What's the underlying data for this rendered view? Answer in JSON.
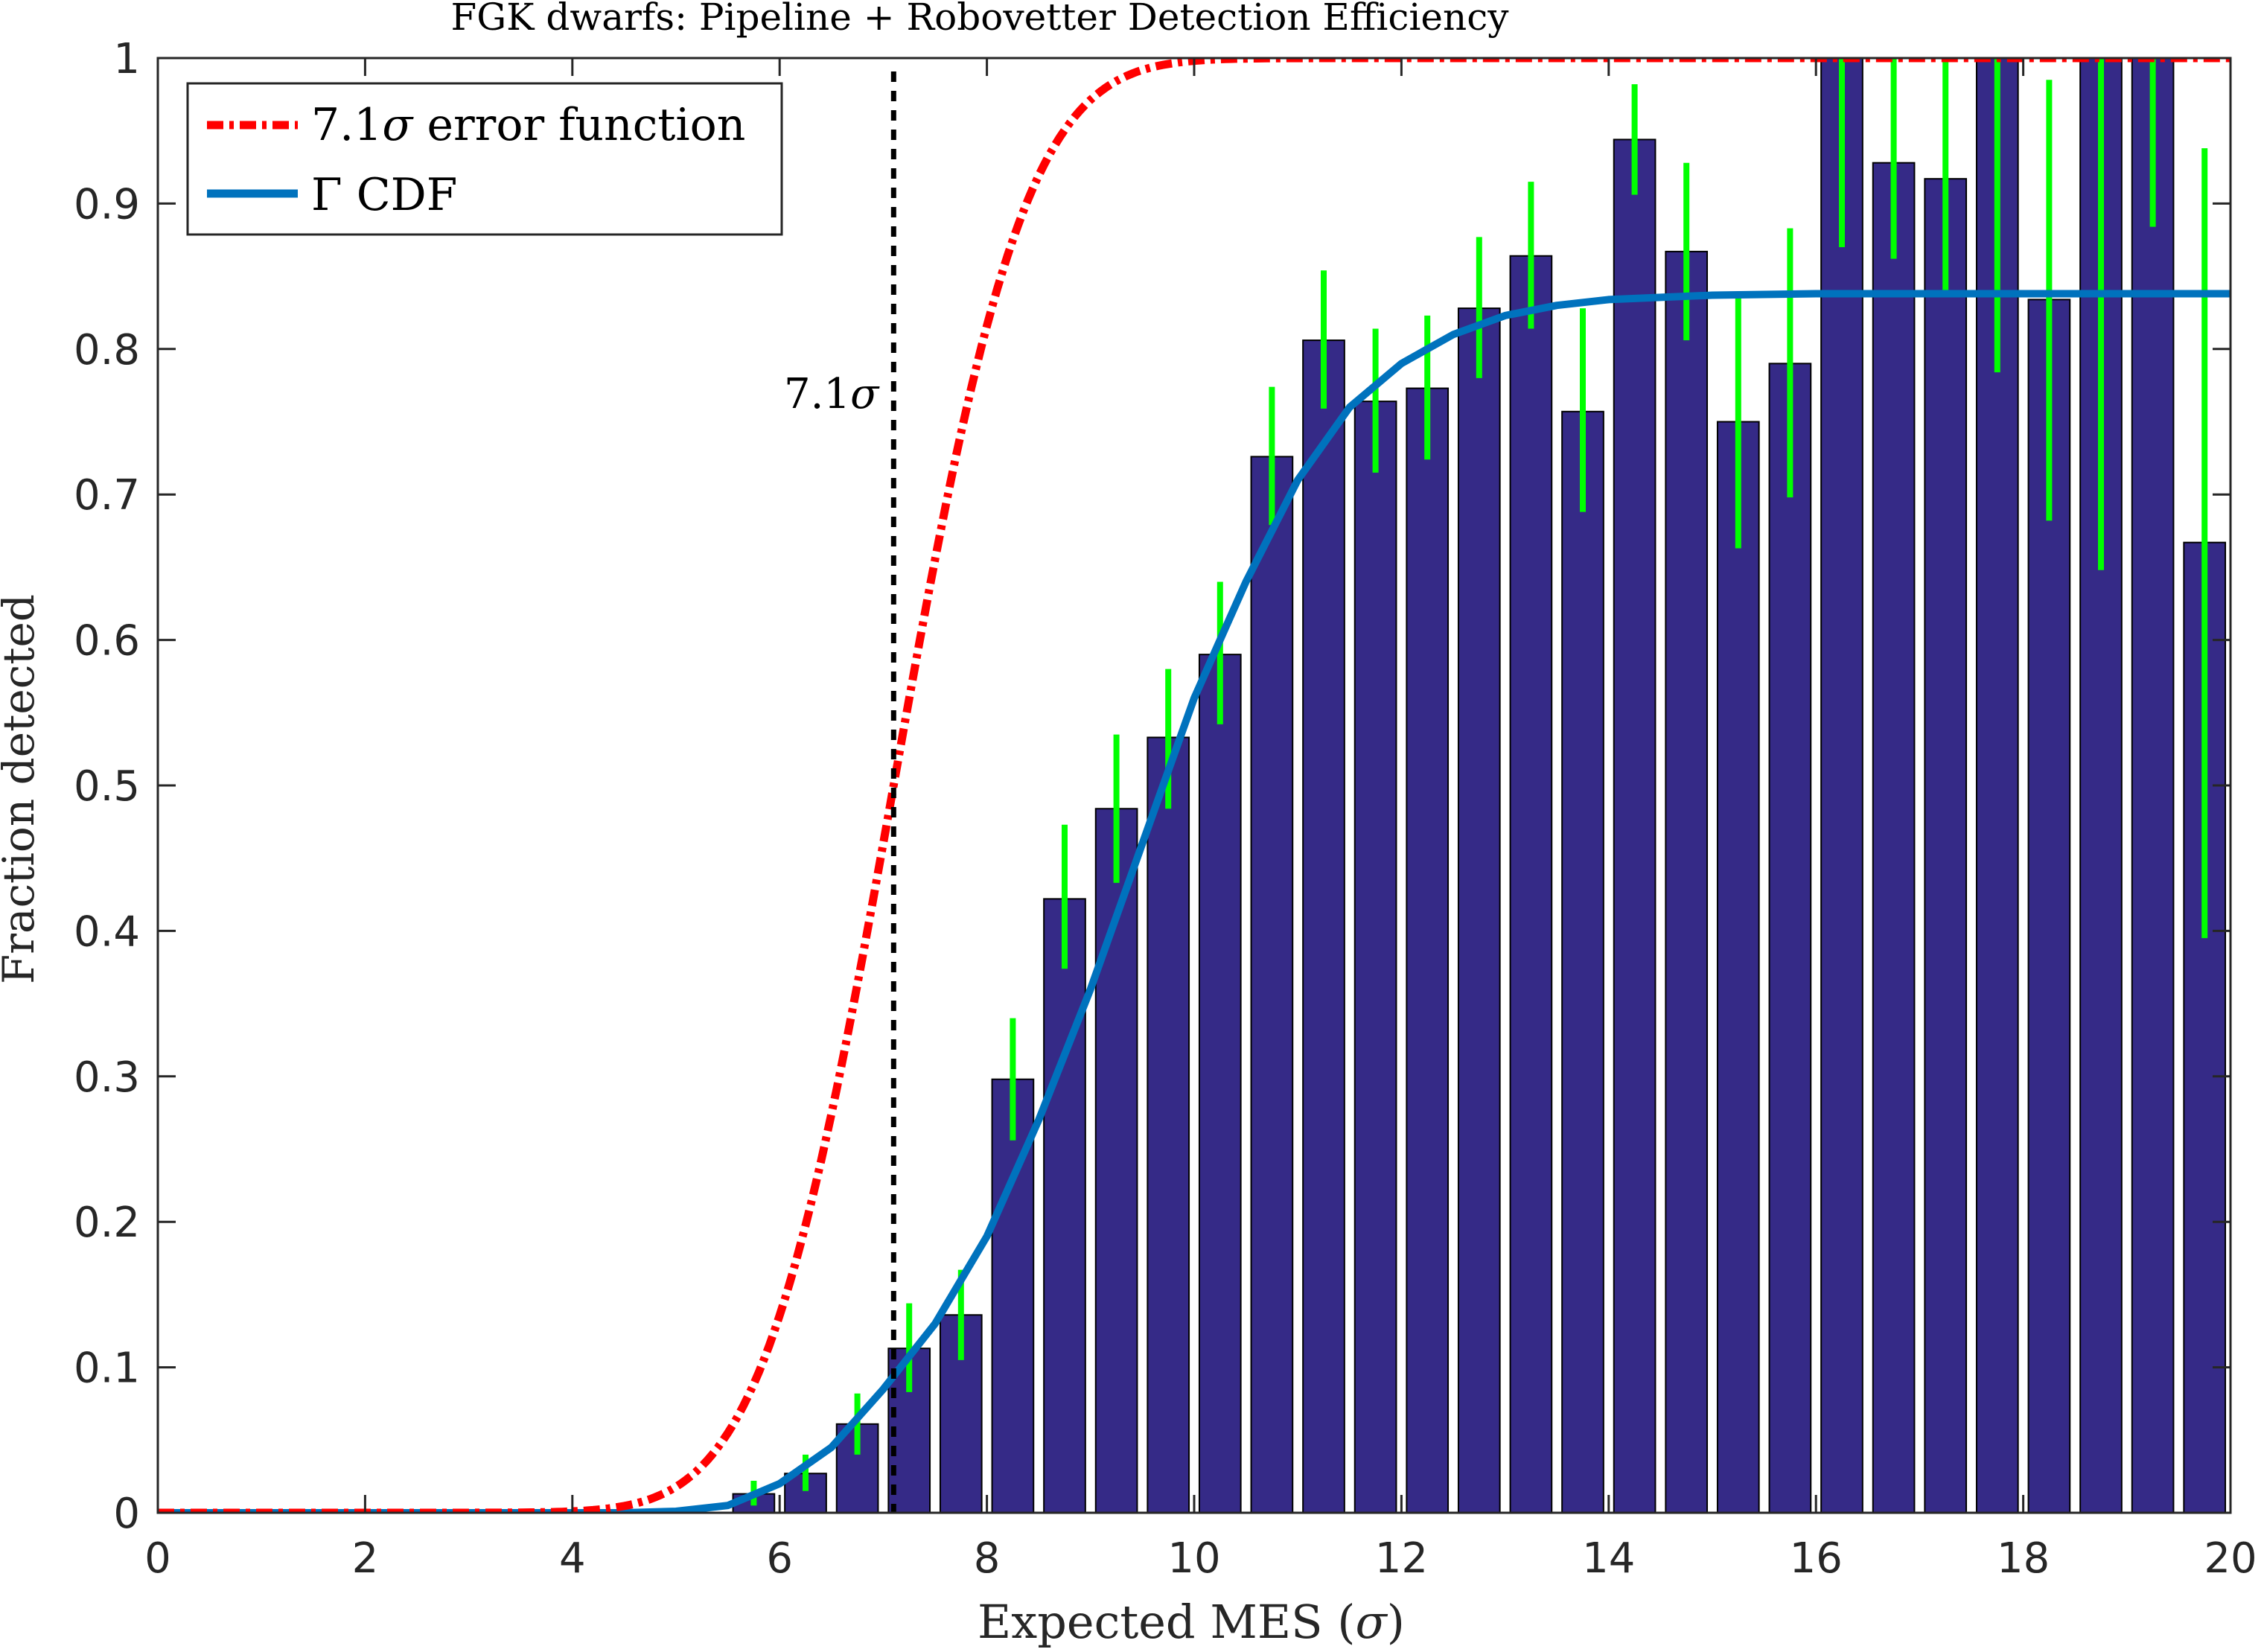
{
  "chart_data": {
    "type": "bar",
    "title": "FGK dwarfs: Pipeline + Robovetter Detection Efficiency",
    "xlabel": "Expected MES (σ)",
    "ylabel": "Fraction detected",
    "xlim": [
      0,
      20
    ],
    "ylim": [
      0,
      1
    ],
    "xticks": [
      0,
      2,
      4,
      6,
      8,
      10,
      12,
      14,
      16,
      18,
      20
    ],
    "xtick_labels": [
      "0",
      "2",
      "4",
      "6",
      "8",
      "10",
      "12",
      "14",
      "16",
      "18",
      "20"
    ],
    "yticks": [
      0,
      0.1,
      0.2,
      0.3,
      0.4,
      0.5,
      0.6,
      0.7,
      0.8,
      0.9,
      1
    ],
    "ytick_labels": [
      "0",
      "0.1",
      "0.2",
      "0.3",
      "0.4",
      "0.5",
      "0.6",
      "0.7",
      "0.8",
      "0.9",
      "1"
    ],
    "grid": false,
    "legend_position": "top-left",
    "legend": [
      {
        "label_main": "7.1",
        "label_greek": "σ",
        "label_rest": " error function",
        "color": "#ff0000",
        "style": "dash-dot"
      },
      {
        "label_main": "Γ CDF",
        "color": "#0072bd",
        "style": "solid"
      }
    ],
    "bar_color": "#352a87",
    "errorbar_color": "#00ff00",
    "bars": {
      "x": [
        5.75,
        6.25,
        6.75,
        7.25,
        7.75,
        8.25,
        8.75,
        9.25,
        9.75,
        10.25,
        10.75,
        11.25,
        11.75,
        12.25,
        12.75,
        13.25,
        13.75,
        14.25,
        14.75,
        15.25,
        15.75,
        16.25,
        16.75,
        17.25,
        17.75,
        18.25,
        18.75,
        19.25,
        19.75
      ],
      "y": [
        0.013,
        0.027,
        0.061,
        0.113,
        0.136,
        0.298,
        0.422,
        0.484,
        0.533,
        0.59,
        0.726,
        0.806,
        0.764,
        0.773,
        0.828,
        0.864,
        0.757,
        0.944,
        0.867,
        0.75,
        0.79,
        1.0,
        0.928,
        0.917,
        1.0,
        0.834,
        1.0,
        1.0,
        0.667
      ],
      "err_low": [
        0.005,
        0.015,
        0.04,
        0.083,
        0.105,
        0.256,
        0.374,
        0.433,
        0.484,
        0.542,
        0.679,
        0.759,
        0.715,
        0.724,
        0.78,
        0.814,
        0.688,
        0.906,
        0.806,
        0.663,
        0.698,
        0.87,
        0.862,
        0.839,
        0.784,
        0.682,
        0.648,
        0.884,
        0.395
      ],
      "err_high": [
        0.022,
        0.04,
        0.082,
        0.144,
        0.167,
        0.34,
        0.473,
        0.535,
        0.58,
        0.64,
        0.774,
        0.854,
        0.814,
        0.823,
        0.877,
        0.915,
        0.828,
        0.982,
        0.928,
        0.838,
        0.883,
        1.0,
        1.0,
        0.998,
        1.0,
        0.985,
        1.0,
        1.0,
        0.938
      ]
    },
    "gamma_cdf": {
      "name": "Γ CDF",
      "x": [
        0,
        4.5,
        5.0,
        5.5,
        6.0,
        6.5,
        7.0,
        7.5,
        8.0,
        8.5,
        9.0,
        9.5,
        10.0,
        10.5,
        11.0,
        11.5,
        12.0,
        12.5,
        13.0,
        13.5,
        14.0,
        15.0,
        16.0,
        20.0
      ],
      "y": [
        0,
        0,
        0.001,
        0.005,
        0.02,
        0.045,
        0.085,
        0.13,
        0.19,
        0.27,
        0.36,
        0.46,
        0.56,
        0.64,
        0.71,
        0.76,
        0.79,
        0.81,
        0.823,
        0.83,
        0.834,
        0.837,
        0.838,
        0.838
      ]
    },
    "erf_curve": {
      "name": "7.1σ error function",
      "center": 7.1,
      "width": 1.0,
      "x_range": [
        0,
        20
      ]
    },
    "threshold_line": {
      "x": 7.1,
      "label_main": "7.1",
      "label_greek": "σ"
    }
  }
}
